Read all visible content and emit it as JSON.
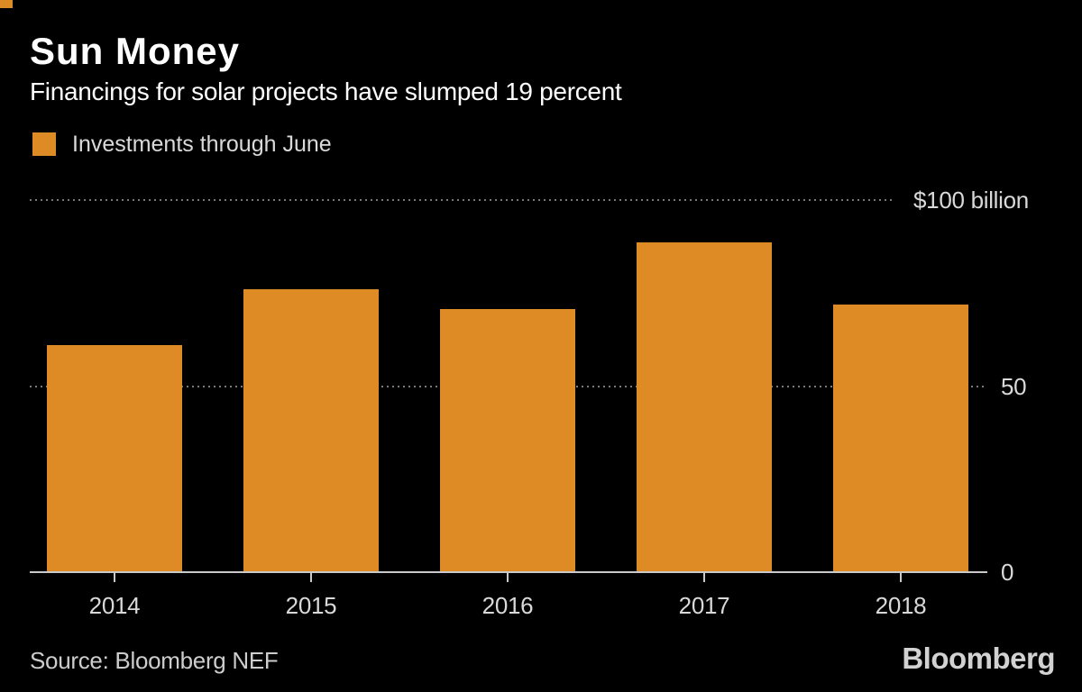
{
  "title": "Sun Money",
  "subtitle": "Financings for solar projects have slumped 19 percent",
  "legend": {
    "label": "Investments through June"
  },
  "source": "Source: Bloomberg NEF",
  "brand": "Bloomberg",
  "colors": {
    "background": "#000000",
    "bar": "#DE8B26",
    "corner_mark": "#DE8B26",
    "title_text": "#ffffff",
    "axis_text": "#d9d9d9",
    "gridline_dots": "#787878",
    "baseline": "#c9c9c9"
  },
  "chart_data": {
    "type": "bar",
    "title": "Sun Money",
    "subtitle": "Financings for solar projects have slumped 19 percent",
    "categories": [
      "2014",
      "2015",
      "2016",
      "2017",
      "2018"
    ],
    "values": [
      60.8,
      75.8,
      70.5,
      88.4,
      71.6
    ],
    "series_name": "Investments through June",
    "unit": "$ billion",
    "xlabel": "",
    "ylabel": "",
    "ylim": [
      0,
      100
    ],
    "grid": "horizontal-dotted",
    "legend_position": "top-left",
    "bar_color": "#DE8B26",
    "gridlines": [
      {
        "value": 100,
        "label": "$100 billion"
      },
      {
        "value": 50,
        "label": "50"
      },
      {
        "value": 0,
        "label": "0"
      }
    ]
  }
}
